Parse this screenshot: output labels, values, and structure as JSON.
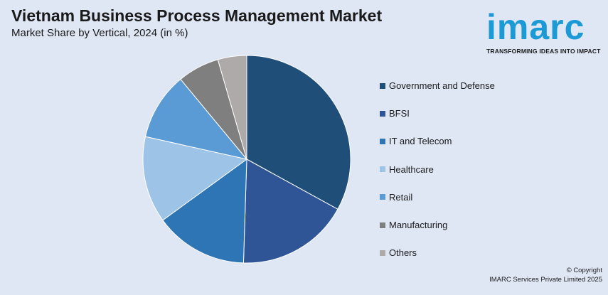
{
  "header": {
    "title": "Vietnam Business Process Management Market",
    "subtitle": "Market Share by Vertical, 2024 (in %)"
  },
  "logo": {
    "word": "imarc",
    "tagline": "TRANSFORMING IDEAS INTO IMPACT"
  },
  "footer": {
    "line1": "© Copyright",
    "line2": "IMARC Services Private Limited 2025"
  },
  "chart_data": {
    "type": "pie",
    "title": "Vietnam Business Process Management Market",
    "subtitle": "Market Share by Vertical, 2024 (in %)",
    "legend_position": "right",
    "slices": [
      {
        "label": "Government and Defense",
        "value": 33,
        "color": "#1f4e79"
      },
      {
        "label": "BFSI",
        "value": 17.5,
        "color": "#2f5597"
      },
      {
        "label": "IT and Telecom",
        "value": 14.5,
        "color": "#2e75b6"
      },
      {
        "label": "Healthcare",
        "value": 13.5,
        "color": "#9dc3e6"
      },
      {
        "label": "Retail",
        "value": 10.5,
        "color": "#5b9bd5"
      },
      {
        "label": "Manufacturing",
        "value": 6.5,
        "color": "#7f7f7f"
      },
      {
        "label": "Others",
        "value": 4.5,
        "color": "#aeaaaa"
      }
    ]
  }
}
